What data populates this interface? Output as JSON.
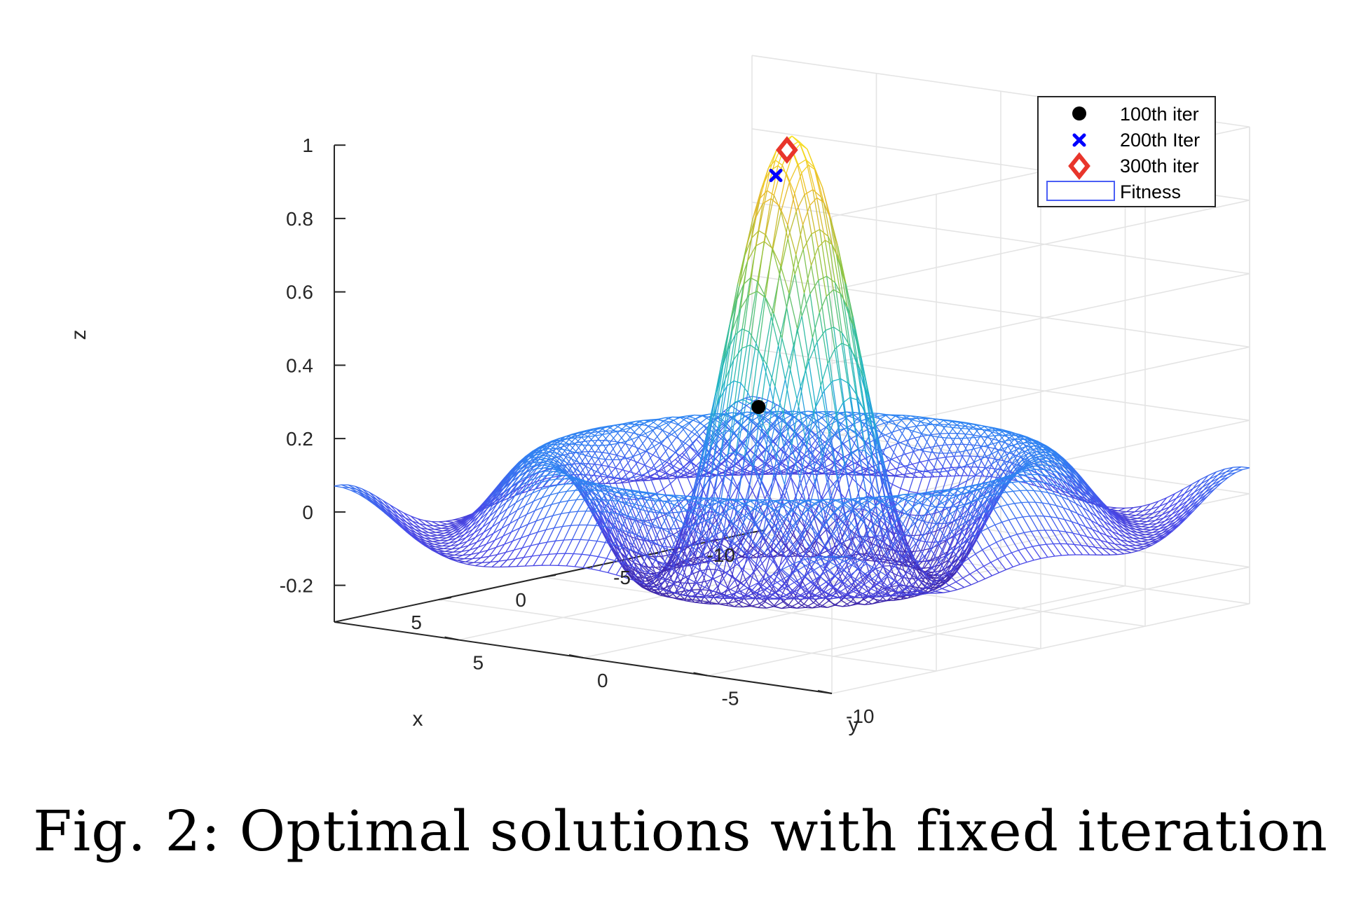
{
  "figure": {
    "caption": "Fig. 2: Optimal solutions with fixed iteration"
  },
  "chart_data": {
    "type": "surface",
    "function": "sinc",
    "xlabel": "x",
    "ylabel": "y",
    "zlabel": "z",
    "xlim": [
      -10,
      10
    ],
    "ylim": [
      -10,
      10
    ],
    "zlim": [
      -0.3,
      1
    ],
    "xticks": [
      5,
      0,
      -5,
      -10
    ],
    "yticks": [
      5,
      0,
      -5,
      -10
    ],
    "zticks": [
      1,
      0.8,
      0.6,
      0.4,
      0.2,
      0,
      -0.2
    ],
    "xtick_labels": [
      "5",
      "0",
      "-5",
      "-10"
    ],
    "ytick_labels": [
      "5",
      "0",
      "-5",
      "-10"
    ],
    "ztick_labels": [
      "1",
      "0.8",
      "0.6",
      "0.4",
      "0.2",
      "0",
      "-0.2"
    ],
    "grid": true,
    "colormap": "parula",
    "colormap_colors": [
      "#3e26a8",
      "#4a4aea",
      "#2f86f2",
      "#20b4c9",
      "#3fc190",
      "#95c43f",
      "#e7b92d",
      "#f9e320"
    ],
    "legend_position": "top-right",
    "legend": [
      "100th iter",
      "200th Iter",
      "300th iter",
      "Fitness"
    ],
    "series": [
      {
        "name": "100th iter",
        "marker": "circle",
        "color": "#000000",
        "points": [
          {
            "x": -0.9,
            "y": 2.1,
            "z": 0.23
          }
        ]
      },
      {
        "name": "200th Iter",
        "marker": "x",
        "color": "#0000ff",
        "points": [
          {
            "x": -0.3,
            "y": 0.9,
            "z": 0.88
          }
        ]
      },
      {
        "name": "300th iter",
        "marker": "diamond",
        "color": "#e8352b",
        "points": [
          {
            "x": 0.0,
            "y": 0.2,
            "z": 0.96
          }
        ]
      },
      {
        "name": "Fitness",
        "marker": "mesh",
        "color": "#4a5ef5"
      }
    ]
  }
}
